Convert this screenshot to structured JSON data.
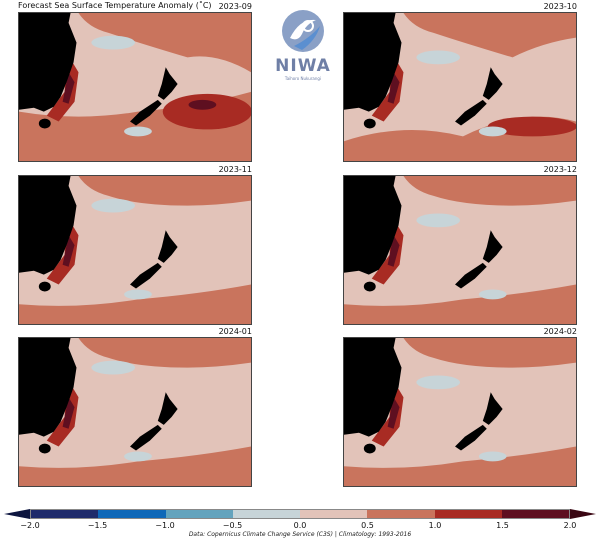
{
  "title": "Forecast Sea Surface Temperature Anomaly (˚C)",
  "logo": {
    "name": "NIWA",
    "subtitle": "Taihoro Nukurangi"
  },
  "panels": [
    {
      "label": "2023-09",
      "warmth": 3
    },
    {
      "label": "2023-10",
      "warmth": 2
    },
    {
      "label": "2023-11",
      "warmth": 1
    },
    {
      "label": "2023-12",
      "warmth": 1
    },
    {
      "label": "2024-01",
      "warmth": 1
    },
    {
      "label": "2024-02",
      "warmth": 1
    }
  ],
  "colorbar": {
    "colors": [
      "#1f2b6b",
      "#0f68b8",
      "#63a3bd",
      "#c7d4d8",
      "#e2c3b9",
      "#c9745d",
      "#a82b23",
      "#5e0f20"
    ],
    "under_color": "#0d1640",
    "over_color": "#3a0612",
    "ticks": [
      "−2.0",
      "−1.5",
      "−1.0",
      "−0.5",
      "0.0",
      "0.5",
      "1.0",
      "1.5",
      "2.0"
    ]
  },
  "credit": "Data: Copernicus Climate Change Service (C3S) | Climatology: 1993-2016"
}
